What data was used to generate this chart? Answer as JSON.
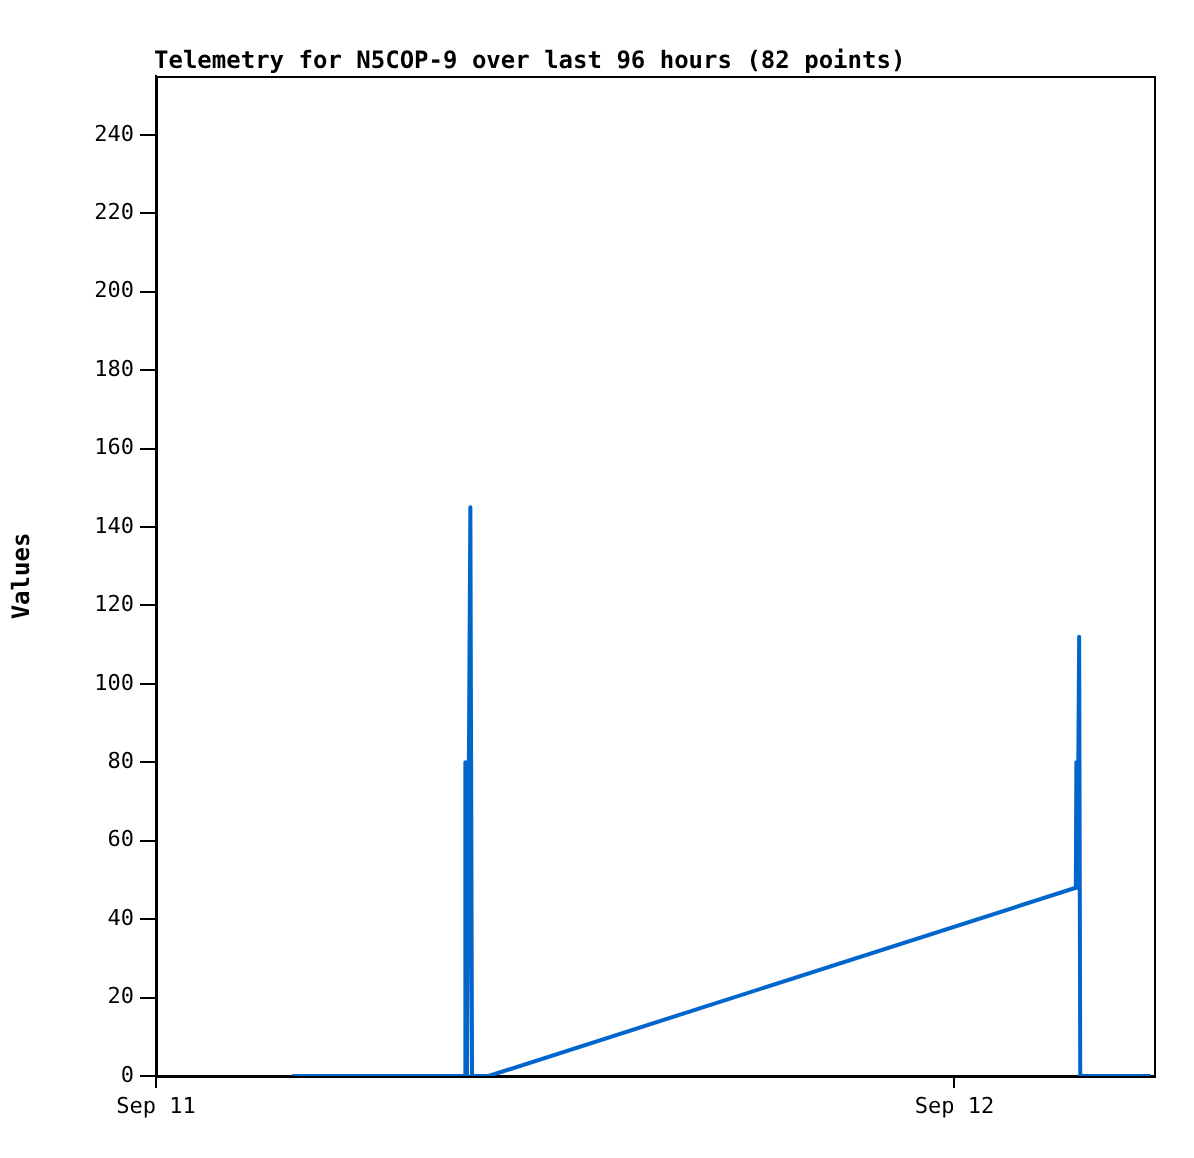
{
  "chart_data": {
    "type": "line",
    "title": "Telemetry for N5COP-9 over last 96 hours (82 points)",
    "ylabel": "Values",
    "x": [
      "--09-11T04:06",
      "--09-11T09:18",
      "--09-11T09:18",
      "--09-11T09:21",
      "--09-11T09:27",
      "--09-11T09:30",
      "--09-11T10:00",
      "--09-12T03:39",
      "--09-12T03:40",
      "--09-12T03:42",
      "--09-12T03:45",
      "--09-12T03:47",
      "--09-12T05:54"
    ],
    "values": [
      0,
      0,
      80,
      0,
      145,
      0,
      0,
      48,
      80,
      48,
      112,
      0,
      0
    ],
    "color": "#0066cc",
    "xlim": [
      "--09-11T00:00",
      "--09-12T06:00"
    ],
    "xticks": [
      {
        "value": "--09-11",
        "label": "Sep 11"
      },
      {
        "value": "--09-12",
        "label": "Sep 12"
      }
    ],
    "ylim": [
      0,
      255
    ],
    "yticks": [
      0,
      20,
      40,
      60,
      80,
      100,
      120,
      140,
      160,
      180,
      200,
      220,
      240
    ],
    "grid": false,
    "legend": false,
    "marker": "none",
    "line_style": "solid"
  }
}
